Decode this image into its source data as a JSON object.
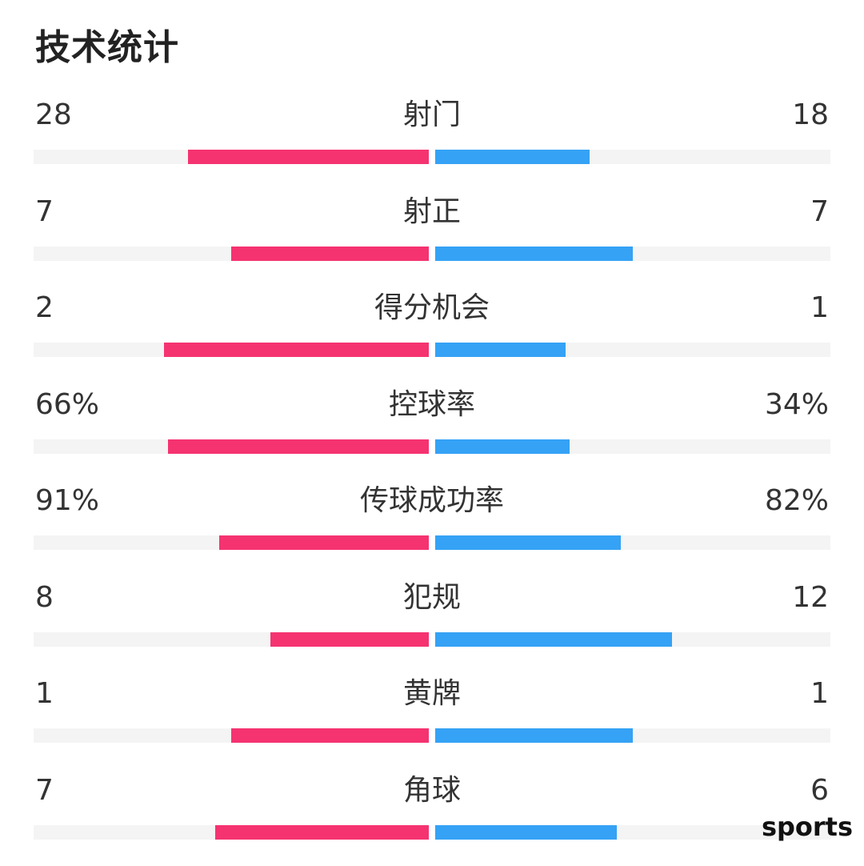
{
  "title": "技术统计",
  "watermark": "sports",
  "colors": {
    "home": "#f53371",
    "away": "#35a2f5",
    "track": "#f4f4f4"
  },
  "chart_data": {
    "type": "bar",
    "title": "技术统计",
    "categories": [
      "射门",
      "射正",
      "得分机会",
      "控球率",
      "传球成功率",
      "犯规",
      "黄牌",
      "角球"
    ],
    "series": [
      {
        "values": [
          28,
          7,
          2,
          66,
          91,
          8,
          1,
          7
        ]
      },
      {
        "values": [
          18,
          7,
          1,
          34,
          82,
          12,
          1,
          6
        ]
      }
    ],
    "rows": [
      {
        "label": "射门",
        "left_text": "28",
        "right_text": "18",
        "left_fill": 0.61,
        "right_fill": 0.39
      },
      {
        "label": "射正",
        "left_text": "7",
        "right_text": "7",
        "left_fill": 0.5,
        "right_fill": 0.5
      },
      {
        "label": "得分机会",
        "left_text": "2",
        "right_text": "1",
        "left_fill": 0.67,
        "right_fill": 0.33
      },
      {
        "label": "控球率",
        "left_text": "66%",
        "right_text": "34%",
        "left_fill": 0.66,
        "right_fill": 0.34
      },
      {
        "label": "传球成功率",
        "left_text": "91%",
        "right_text": "82%",
        "left_fill": 0.53,
        "right_fill": 0.47
      },
      {
        "label": "犯规",
        "left_text": "8",
        "right_text": "12",
        "left_fill": 0.4,
        "right_fill": 0.6
      },
      {
        "label": "黄牌",
        "left_text": "1",
        "right_text": "1",
        "left_fill": 0.5,
        "right_fill": 0.5
      },
      {
        "label": "角球",
        "left_text": "7",
        "right_text": "6",
        "left_fill": 0.54,
        "right_fill": 0.46
      }
    ]
  }
}
